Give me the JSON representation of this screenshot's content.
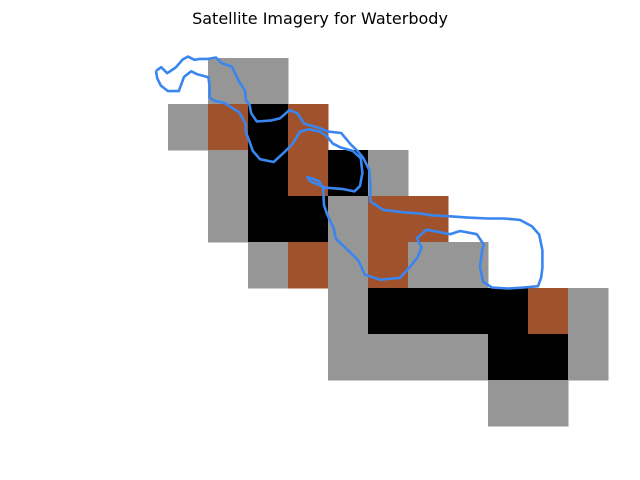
{
  "title": "Satellite Imagery for Waterbody",
  "chart_data": {
    "type": "heatmap",
    "title": "Satellite Imagery for Waterbody",
    "grid": false,
    "axes_visible": false,
    "xlim": [
      0,
      11
    ],
    "ylim": [
      0,
      9
    ],
    "colors": {
      "gray": "#969696",
      "brown": "#a0522d",
      "black": "#000000",
      "outline": "#3a86f0"
    },
    "cells": [
      {
        "col": 2,
        "row": 0,
        "class": "gray"
      },
      {
        "col": 3,
        "row": 0,
        "class": "gray"
      },
      {
        "col": 1,
        "row": 1,
        "class": "gray"
      },
      {
        "col": 2,
        "row": 1,
        "class": "brown"
      },
      {
        "col": 3,
        "row": 1,
        "class": "black"
      },
      {
        "col": 4,
        "row": 1,
        "class": "brown"
      },
      {
        "col": 2,
        "row": 2,
        "class": "gray"
      },
      {
        "col": 3,
        "row": 2,
        "class": "black"
      },
      {
        "col": 4,
        "row": 2,
        "class": "brown"
      },
      {
        "col": 5,
        "row": 2,
        "class": "black"
      },
      {
        "col": 6,
        "row": 2,
        "class": "gray"
      },
      {
        "col": 2,
        "row": 3,
        "class": "gray"
      },
      {
        "col": 3,
        "row": 3,
        "class": "black"
      },
      {
        "col": 4,
        "row": 3,
        "class": "black"
      },
      {
        "col": 5,
        "row": 3,
        "class": "gray"
      },
      {
        "col": 6,
        "row": 3,
        "class": "brown"
      },
      {
        "col": 7,
        "row": 3,
        "class": "brown"
      },
      {
        "col": 3,
        "row": 4,
        "class": "gray"
      },
      {
        "col": 4,
        "row": 4,
        "class": "brown"
      },
      {
        "col": 5,
        "row": 4,
        "class": "gray"
      },
      {
        "col": 6,
        "row": 4,
        "class": "brown"
      },
      {
        "col": 7,
        "row": 4,
        "class": "gray"
      },
      {
        "col": 8,
        "row": 4,
        "class": "gray"
      },
      {
        "col": 5,
        "row": 5,
        "class": "gray"
      },
      {
        "col": 6,
        "row": 5,
        "class": "black"
      },
      {
        "col": 7,
        "row": 5,
        "class": "black"
      },
      {
        "col": 8,
        "row": 5,
        "class": "black"
      },
      {
        "col": 9,
        "row": 5,
        "class": "black"
      },
      {
        "col": 10,
        "row": 5,
        "class": "brown"
      },
      {
        "col": 11,
        "row": 5,
        "class": "gray"
      },
      {
        "col": 5,
        "row": 6,
        "class": "gray"
      },
      {
        "col": 6,
        "row": 6,
        "class": "gray"
      },
      {
        "col": 7,
        "row": 6,
        "class": "gray"
      },
      {
        "col": 8,
        "row": 6,
        "class": "gray"
      },
      {
        "col": 9,
        "row": 6,
        "class": "black"
      },
      {
        "col": 10,
        "row": 6,
        "class": "black"
      },
      {
        "col": 11,
        "row": 6,
        "class": "gray"
      },
      {
        "col": 9,
        "row": 7,
        "class": "gray"
      },
      {
        "col": 10,
        "row": 7,
        "class": "gray"
      }
    ],
    "outline": [
      [
        0.7,
        0.28
      ],
      [
        0.83,
        0.2
      ],
      [
        0.98,
        0.33
      ],
      [
        1.1,
        0.26
      ],
      [
        1.2,
        0.2
      ],
      [
        1.37,
        0.03
      ],
      [
        1.5,
        -0.03
      ],
      [
        1.66,
        0.04
      ],
      [
        1.8,
        0.02
      ],
      [
        2.0,
        0.02
      ],
      [
        2.2,
        -0.01
      ],
      [
        2.34,
        0.11
      ],
      [
        2.6,
        0.19
      ],
      [
        2.78,
        0.52
      ],
      [
        2.92,
        0.7
      ],
      [
        2.95,
        0.92
      ],
      [
        3.04,
        1.02
      ],
      [
        3.08,
        1.2
      ],
      [
        3.22,
        1.38
      ],
      [
        3.56,
        1.36
      ],
      [
        3.8,
        1.31
      ],
      [
        4.04,
        1.13
      ],
      [
        4.23,
        1.2
      ],
      [
        4.41,
        1.43
      ],
      [
        4.78,
        1.52
      ],
      [
        5.0,
        1.6
      ],
      [
        5.33,
        1.63
      ],
      [
        5.58,
        1.89
      ],
      [
        5.74,
        2.02
      ],
      [
        5.88,
        2.17
      ],
      [
        6.03,
        2.43
      ],
      [
        6.06,
        2.78
      ],
      [
        6.06,
        3.12
      ],
      [
        6.38,
        3.3
      ],
      [
        6.95,
        3.36
      ],
      [
        7.3,
        3.38
      ],
      [
        7.6,
        3.42
      ],
      [
        8.0,
        3.44
      ],
      [
        8.5,
        3.47
      ],
      [
        9.0,
        3.49
      ],
      [
        9.4,
        3.49
      ],
      [
        9.8,
        3.52
      ],
      [
        10.1,
        3.66
      ],
      [
        10.28,
        3.84
      ],
      [
        10.36,
        4.18
      ],
      [
        10.36,
        4.56
      ],
      [
        10.33,
        4.77
      ],
      [
        10.25,
        4.96
      ],
      [
        9.9,
        4.99
      ],
      [
        9.5,
        5.01
      ],
      [
        9.1,
        4.99
      ],
      [
        8.88,
        4.87
      ],
      [
        8.8,
        4.55
      ],
      [
        8.85,
        4.2
      ],
      [
        8.89,
        4.05
      ],
      [
        8.72,
        3.83
      ],
      [
        8.3,
        3.76
      ],
      [
        8.05,
        3.83
      ],
      [
        7.75,
        3.78
      ],
      [
        7.46,
        3.73
      ],
      [
        7.22,
        3.92
      ],
      [
        7.34,
        4.12
      ],
      [
        7.24,
        4.33
      ],
      [
        7.04,
        4.55
      ],
      [
        6.8,
        4.78
      ],
      [
        6.3,
        4.82
      ],
      [
        5.92,
        4.71
      ],
      [
        5.76,
        4.4
      ],
      [
        5.56,
        4.23
      ],
      [
        5.2,
        3.93
      ],
      [
        5.14,
        3.7
      ],
      [
        4.98,
        3.4
      ],
      [
        4.9,
        3.2
      ],
      [
        4.88,
        2.85
      ],
      [
        4.78,
        2.68
      ],
      [
        4.6,
        2.62
      ],
      [
        4.48,
        2.59
      ],
      [
        4.56,
        2.68
      ],
      [
        4.94,
        2.82
      ],
      [
        5.38,
        2.85
      ],
      [
        5.66,
        2.9
      ],
      [
        5.8,
        2.78
      ],
      [
        5.86,
        2.5
      ],
      [
        5.82,
        2.18
      ],
      [
        5.62,
        2.02
      ],
      [
        5.3,
        1.94
      ],
      [
        5.12,
        1.86
      ],
      [
        4.97,
        1.7
      ],
      [
        4.8,
        1.6
      ],
      [
        4.52,
        1.55
      ],
      [
        4.3,
        1.6
      ],
      [
        4.12,
        1.86
      ],
      [
        3.93,
        2.03
      ],
      [
        3.64,
        2.26
      ],
      [
        3.3,
        2.2
      ],
      [
        3.12,
        2.02
      ],
      [
        3.03,
        1.8
      ],
      [
        2.95,
        1.62
      ],
      [
        2.94,
        1.43
      ],
      [
        2.78,
        1.18
      ],
      [
        2.42,
        0.98
      ],
      [
        2.13,
        0.92
      ],
      [
        2.04,
        0.85
      ],
      [
        2.04,
        0.62
      ],
      [
        2.01,
        0.42
      ],
      [
        1.72,
        0.35
      ],
      [
        1.58,
        0.29
      ],
      [
        1.4,
        0.41
      ],
      [
        1.27,
        0.72
      ],
      [
        1.0,
        0.72
      ],
      [
        0.82,
        0.6
      ],
      [
        0.73,
        0.44
      ],
      [
        0.7,
        0.28
      ]
    ]
  }
}
